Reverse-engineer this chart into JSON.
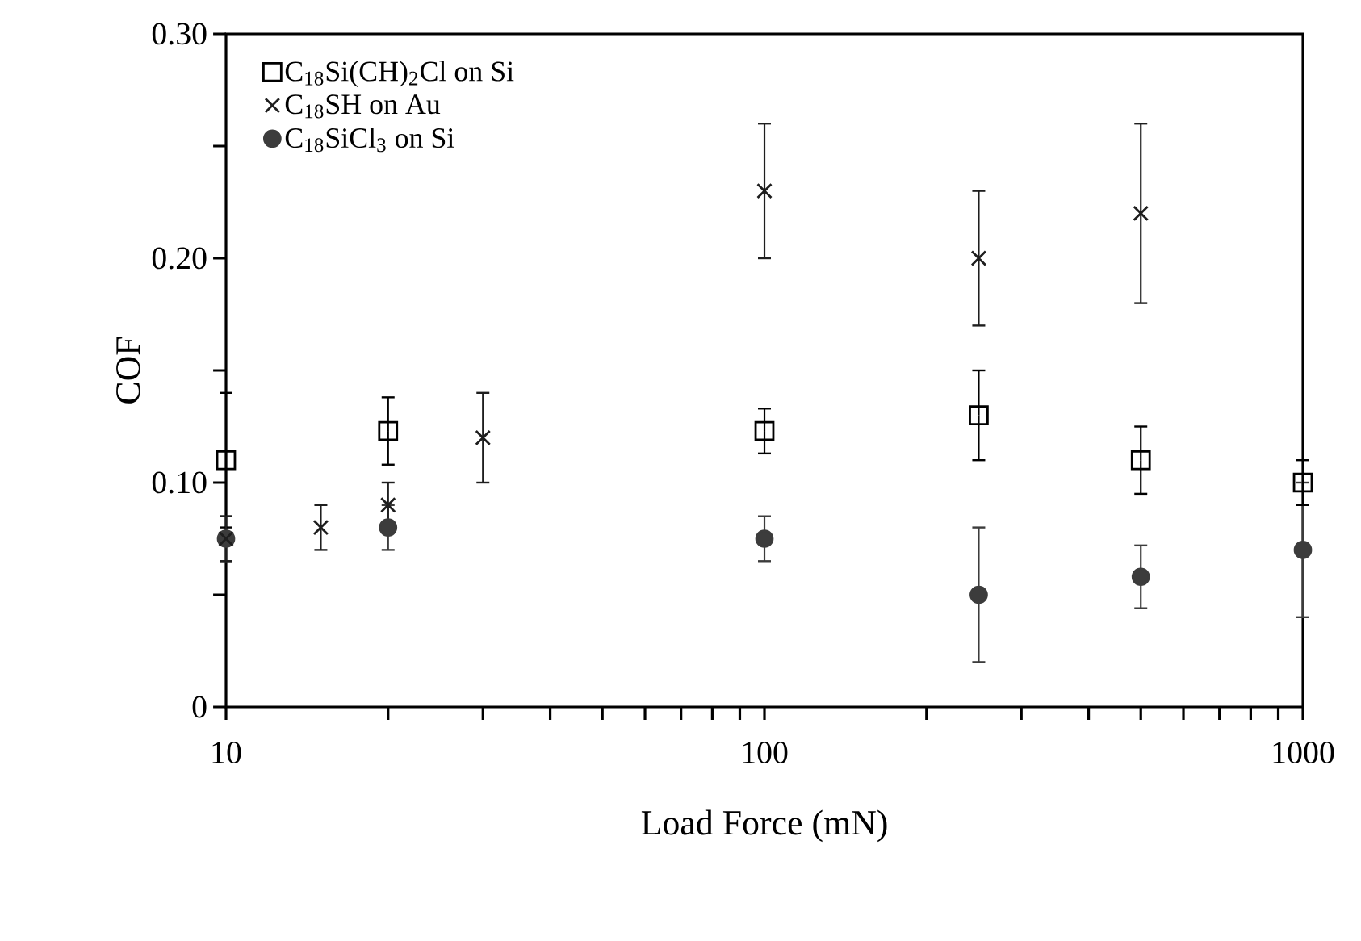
{
  "chart_data": {
    "type": "scatter",
    "xlabel": "Load Force (mN)",
    "ylabel": "COF",
    "log": "x",
    "xlim": [
      10,
      1000
    ],
    "ylim": [
      0,
      0.3
    ],
    "xticks": [
      10,
      {
        "value": 20,
        "label": null
      },
      {
        "value": 30,
        "label": null
      },
      {
        "value": 40,
        "label": null
      },
      {
        "value": 50,
        "label": null
      },
      {
        "value": 60,
        "label": null
      },
      {
        "value": 70,
        "label": null
      },
      {
        "value": 80,
        "label": null
      },
      {
        "value": 90,
        "label": null
      },
      100,
      {
        "value": 200,
        "label": null
      },
      {
        "value": 300,
        "label": null
      },
      {
        "value": 400,
        "label": null
      },
      {
        "value": 500,
        "label": null
      },
      {
        "value": 600,
        "label": null
      },
      {
        "value": 700,
        "label": null
      },
      {
        "value": 800,
        "label": null
      },
      {
        "value": 900,
        "label": null
      },
      1000
    ],
    "yticks": [
      0,
      {
        "value": 0.05,
        "label": null
      },
      {
        "value": 0.1,
        "label": "0.10"
      },
      {
        "value": 0.15,
        "label": null
      },
      {
        "value": 0.2,
        "label": "0.20"
      },
      {
        "value": 0.25,
        "label": null
      },
      {
        "value": 0.3,
        "label": "0.30"
      }
    ],
    "legend": "top left",
    "grid": false,
    "series": [
      {
        "name": "C$_{18}$Si(CH)$_{2}$Cl on Si",
        "color": "#000000",
        "marker": "square",
        "x": [
          10,
          20,
          100,
          250,
          500,
          1000
        ],
        "values": [
          0.11,
          0.123,
          0.123,
          0.13,
          0.11,
          0.1
        ],
        "errors": [
          0.03,
          0.015,
          0.01,
          0.02,
          0.015,
          0.01
        ]
      },
      {
        "name": "C$_{18}$SH on Au",
        "color": "#1e1e1e",
        "marker": "cross",
        "x": [
          10,
          15,
          20,
          30,
          100,
          250,
          500
        ],
        "values": [
          0.075,
          0.08,
          0.09,
          0.12,
          0.23,
          0.2,
          0.22
        ],
        "errors": [
          0.01,
          0.01,
          0.01,
          0.02,
          0.03,
          0.03,
          0.04
        ]
      },
      {
        "name": "C$_{18}$SiCl$_{3}$ on Si",
        "color": "#3c3c3c",
        "marker": "circle",
        "x": [
          10,
          20,
          100,
          250,
          500,
          1000
        ],
        "values": [
          0.075,
          0.08,
          0.075,
          0.05,
          0.058,
          0.07
        ],
        "errors": [
          0.01,
          0.01,
          0.01,
          0.03,
          0.014,
          0.03
        ]
      }
    ]
  }
}
